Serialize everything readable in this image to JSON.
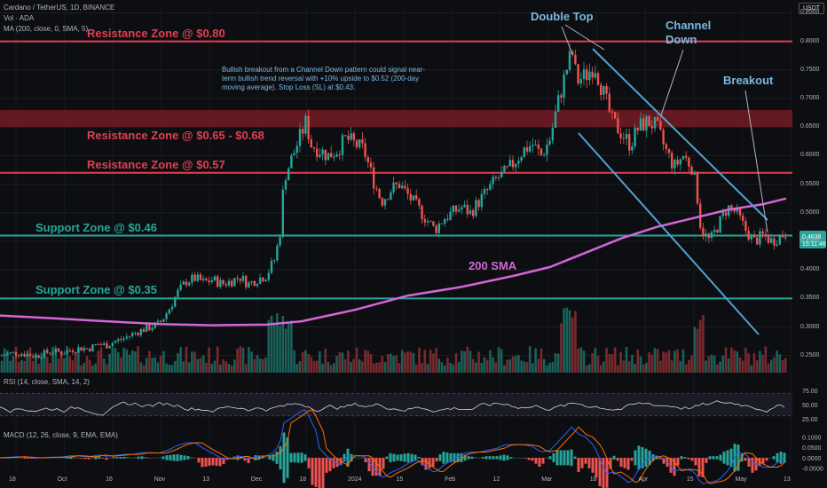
{
  "header": {
    "symbol_line": "Cardano / TetherUS, 1D, BINANCE",
    "vol_line": "Vol · ADA",
    "ma_line": "MA (200, close, 0, SMA, 5)",
    "currency": "USDT"
  },
  "price_labels": {
    "last_price": "0.4638",
    "countdown": "15:11:46"
  },
  "chart_data": {
    "type": "candlestick",
    "y_ticks": [
      "0.8500",
      "0.8000",
      "0.7500",
      "0.7000",
      "0.6500",
      "0.6000",
      "0.5500",
      "0.5000",
      "0.4500",
      "0.4000",
      "0.3500",
      "0.3000",
      "0.2500"
    ],
    "ylim": [
      0.22,
      0.86
    ],
    "x_ticks": [
      "18",
      "Oct",
      "16",
      "Nov",
      "13",
      "Dec",
      "18",
      "2024",
      "15",
      "Feb",
      "12",
      "Mar",
      "18",
      "Apr",
      "15",
      "May",
      "13"
    ],
    "zones": [
      {
        "label": "Resistance Zone @ $0.80",
        "price": 0.8,
        "band": false,
        "color": "#e04050"
      },
      {
        "label": "Resistance Zone @ $0.65 - $0.68",
        "price": 0.665,
        "band": true,
        "color": "#e04050"
      },
      {
        "label": "Resistance Zone @ $0.57",
        "price": 0.57,
        "band": false,
        "color": "#e04050"
      },
      {
        "label": "Support Zone @ $0.46",
        "price": 0.46,
        "band": false,
        "color": "#26a69a"
      },
      {
        "label": "Support Zone @ $0.35",
        "price": 0.35,
        "band": false,
        "color": "#26a69a"
      }
    ],
    "annotations": {
      "double_top": "Double Top",
      "channel_down": "Channel\nDown",
      "breakout": "Breakout",
      "sma_label": "200 SMA",
      "note": "Bullish breakout from a Channel Down pattern could signal near-term bullish trend reversal with +10% upside to $0.52 (200-day moving average). Stop Loss (SL) at $0.43."
    },
    "close_points": [
      [
        0,
        0.25
      ],
      [
        10,
        0.253
      ],
      [
        20,
        0.255
      ],
      [
        30,
        0.252
      ],
      [
        40,
        0.249
      ],
      [
        50,
        0.254
      ],
      [
        60,
        0.258
      ],
      [
        70,
        0.255
      ],
      [
        80,
        0.26
      ],
      [
        90,
        0.263
      ],
      [
        100,
        0.262
      ],
      [
        110,
        0.27
      ],
      [
        120,
        0.268
      ],
      [
        130,
        0.275
      ],
      [
        140,
        0.28
      ],
      [
        150,
        0.288
      ],
      [
        160,
        0.295
      ],
      [
        170,
        0.3
      ],
      [
        180,
        0.306
      ],
      [
        190,
        0.33
      ],
      [
        200,
        0.36
      ],
      [
        210,
        0.38
      ],
      [
        220,
        0.385
      ],
      [
        230,
        0.378
      ],
      [
        240,
        0.383
      ],
      [
        250,
        0.375
      ],
      [
        260,
        0.38
      ],
      [
        270,
        0.388
      ],
      [
        280,
        0.375
      ],
      [
        290,
        0.384
      ],
      [
        300,
        0.39
      ],
      [
        310,
        0.42
      ],
      [
        316,
        0.47
      ],
      [
        320,
        0.56
      ],
      [
        330,
        0.6
      ],
      [
        340,
        0.64
      ],
      [
        345,
        0.66
      ],
      [
        350,
        0.62
      ],
      [
        360,
        0.61
      ],
      [
        370,
        0.6
      ],
      [
        380,
        0.61
      ],
      [
        390,
        0.63
      ],
      [
        400,
        0.62
      ],
      [
        410,
        0.61
      ],
      [
        420,
        0.56
      ],
      [
        430,
        0.52
      ],
      [
        440,
        0.54
      ],
      [
        450,
        0.55
      ],
      [
        460,
        0.53
      ],
      [
        470,
        0.51
      ],
      [
        480,
        0.49
      ],
      [
        490,
        0.47
      ],
      [
        500,
        0.49
      ],
      [
        510,
        0.5
      ],
      [
        520,
        0.51
      ],
      [
        530,
        0.5
      ],
      [
        540,
        0.52
      ],
      [
        550,
        0.54
      ],
      [
        560,
        0.56
      ],
      [
        570,
        0.57
      ],
      [
        580,
        0.59
      ],
      [
        590,
        0.61
      ],
      [
        600,
        0.62
      ],
      [
        610,
        0.6
      ],
      [
        620,
        0.63
      ],
      [
        630,
        0.7
      ],
      [
        640,
        0.76
      ],
      [
        645,
        0.78
      ],
      [
        650,
        0.73
      ],
      [
        660,
        0.74
      ],
      [
        670,
        0.76
      ],
      [
        680,
        0.71
      ],
      [
        690,
        0.66
      ],
      [
        700,
        0.64
      ],
      [
        710,
        0.62
      ],
      [
        720,
        0.65
      ],
      [
        730,
        0.66
      ],
      [
        740,
        0.65
      ],
      [
        750,
        0.61
      ],
      [
        760,
        0.58
      ],
      [
        770,
        0.6
      ],
      [
        780,
        0.58
      ],
      [
        785,
        0.54
      ],
      [
        790,
        0.47
      ],
      [
        800,
        0.45
      ],
      [
        810,
        0.48
      ],
      [
        820,
        0.51
      ],
      [
        830,
        0.5
      ],
      [
        840,
        0.47
      ],
      [
        850,
        0.45
      ],
      [
        860,
        0.46
      ],
      [
        870,
        0.45
      ],
      [
        880,
        0.46
      ],
      [
        886,
        0.4638
      ]
    ],
    "sma_points": [
      [
        0,
        0.32
      ],
      [
        60,
        0.315
      ],
      [
        120,
        0.31
      ],
      [
        180,
        0.305
      ],
      [
        240,
        0.303
      ],
      [
        300,
        0.304
      ],
      [
        340,
        0.31
      ],
      [
        400,
        0.33
      ],
      [
        460,
        0.355
      ],
      [
        520,
        0.37
      ],
      [
        580,
        0.39
      ],
      [
        620,
        0.405
      ],
      [
        660,
        0.43
      ],
      [
        700,
        0.455
      ],
      [
        740,
        0.475
      ],
      [
        780,
        0.49
      ],
      [
        820,
        0.505
      ],
      [
        860,
        0.515
      ],
      [
        886,
        0.525
      ]
    ],
    "rsi": {
      "label": "RSI (14, close, SMA, 14, 2)",
      "ticks": [
        "75.00",
        "50.00",
        "25.00"
      ],
      "upper": 70,
      "lower": 30
    },
    "macd": {
      "label": "MACD (12, 26, close, 9, EMA, EMA)",
      "ticks": [
        "0.1000",
        "0.0500",
        "0.0000",
        "-0.0500"
      ]
    }
  }
}
